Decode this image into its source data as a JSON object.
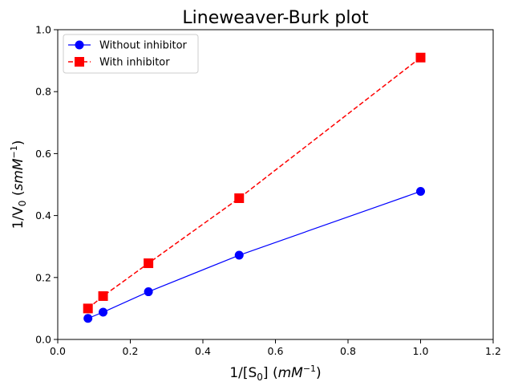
{
  "chart_data": {
    "type": "line",
    "title": "Lineweaver-Burk plot",
    "xlabel_parts": [
      "1/[S",
      "0",
      "] (",
      "mM",
      "−1",
      ")"
    ],
    "ylabel_parts": [
      "1/V",
      "0",
      " (",
      "smM",
      "−1",
      ")"
    ],
    "xlim": [
      0.0,
      1.2
    ],
    "ylim": [
      0.0,
      1.0
    ],
    "xticks": [
      "0.0",
      "0.2",
      "0.4",
      "0.6",
      "0.8",
      "1.0",
      "1.2"
    ],
    "yticks": [
      "0.0",
      "0.2",
      "0.4",
      "0.6",
      "0.8",
      "1.0"
    ],
    "grid": false,
    "legend_position": "upper-left",
    "series": [
      {
        "name": "Without inhibitor",
        "color": "#0000ff",
        "marker": "circle",
        "linestyle": "solid",
        "x": [
          0.0833,
          0.125,
          0.25,
          0.5,
          1.0
        ],
        "y": [
          0.068,
          0.088,
          0.154,
          0.272,
          0.478
        ]
      },
      {
        "name": "With inhibitor",
        "color": "#ff0000",
        "marker": "square",
        "linestyle": "dashed",
        "x": [
          0.0833,
          0.125,
          0.25,
          0.5,
          1.0
        ],
        "y": [
          0.1,
          0.14,
          0.246,
          0.456,
          0.91
        ]
      }
    ]
  }
}
